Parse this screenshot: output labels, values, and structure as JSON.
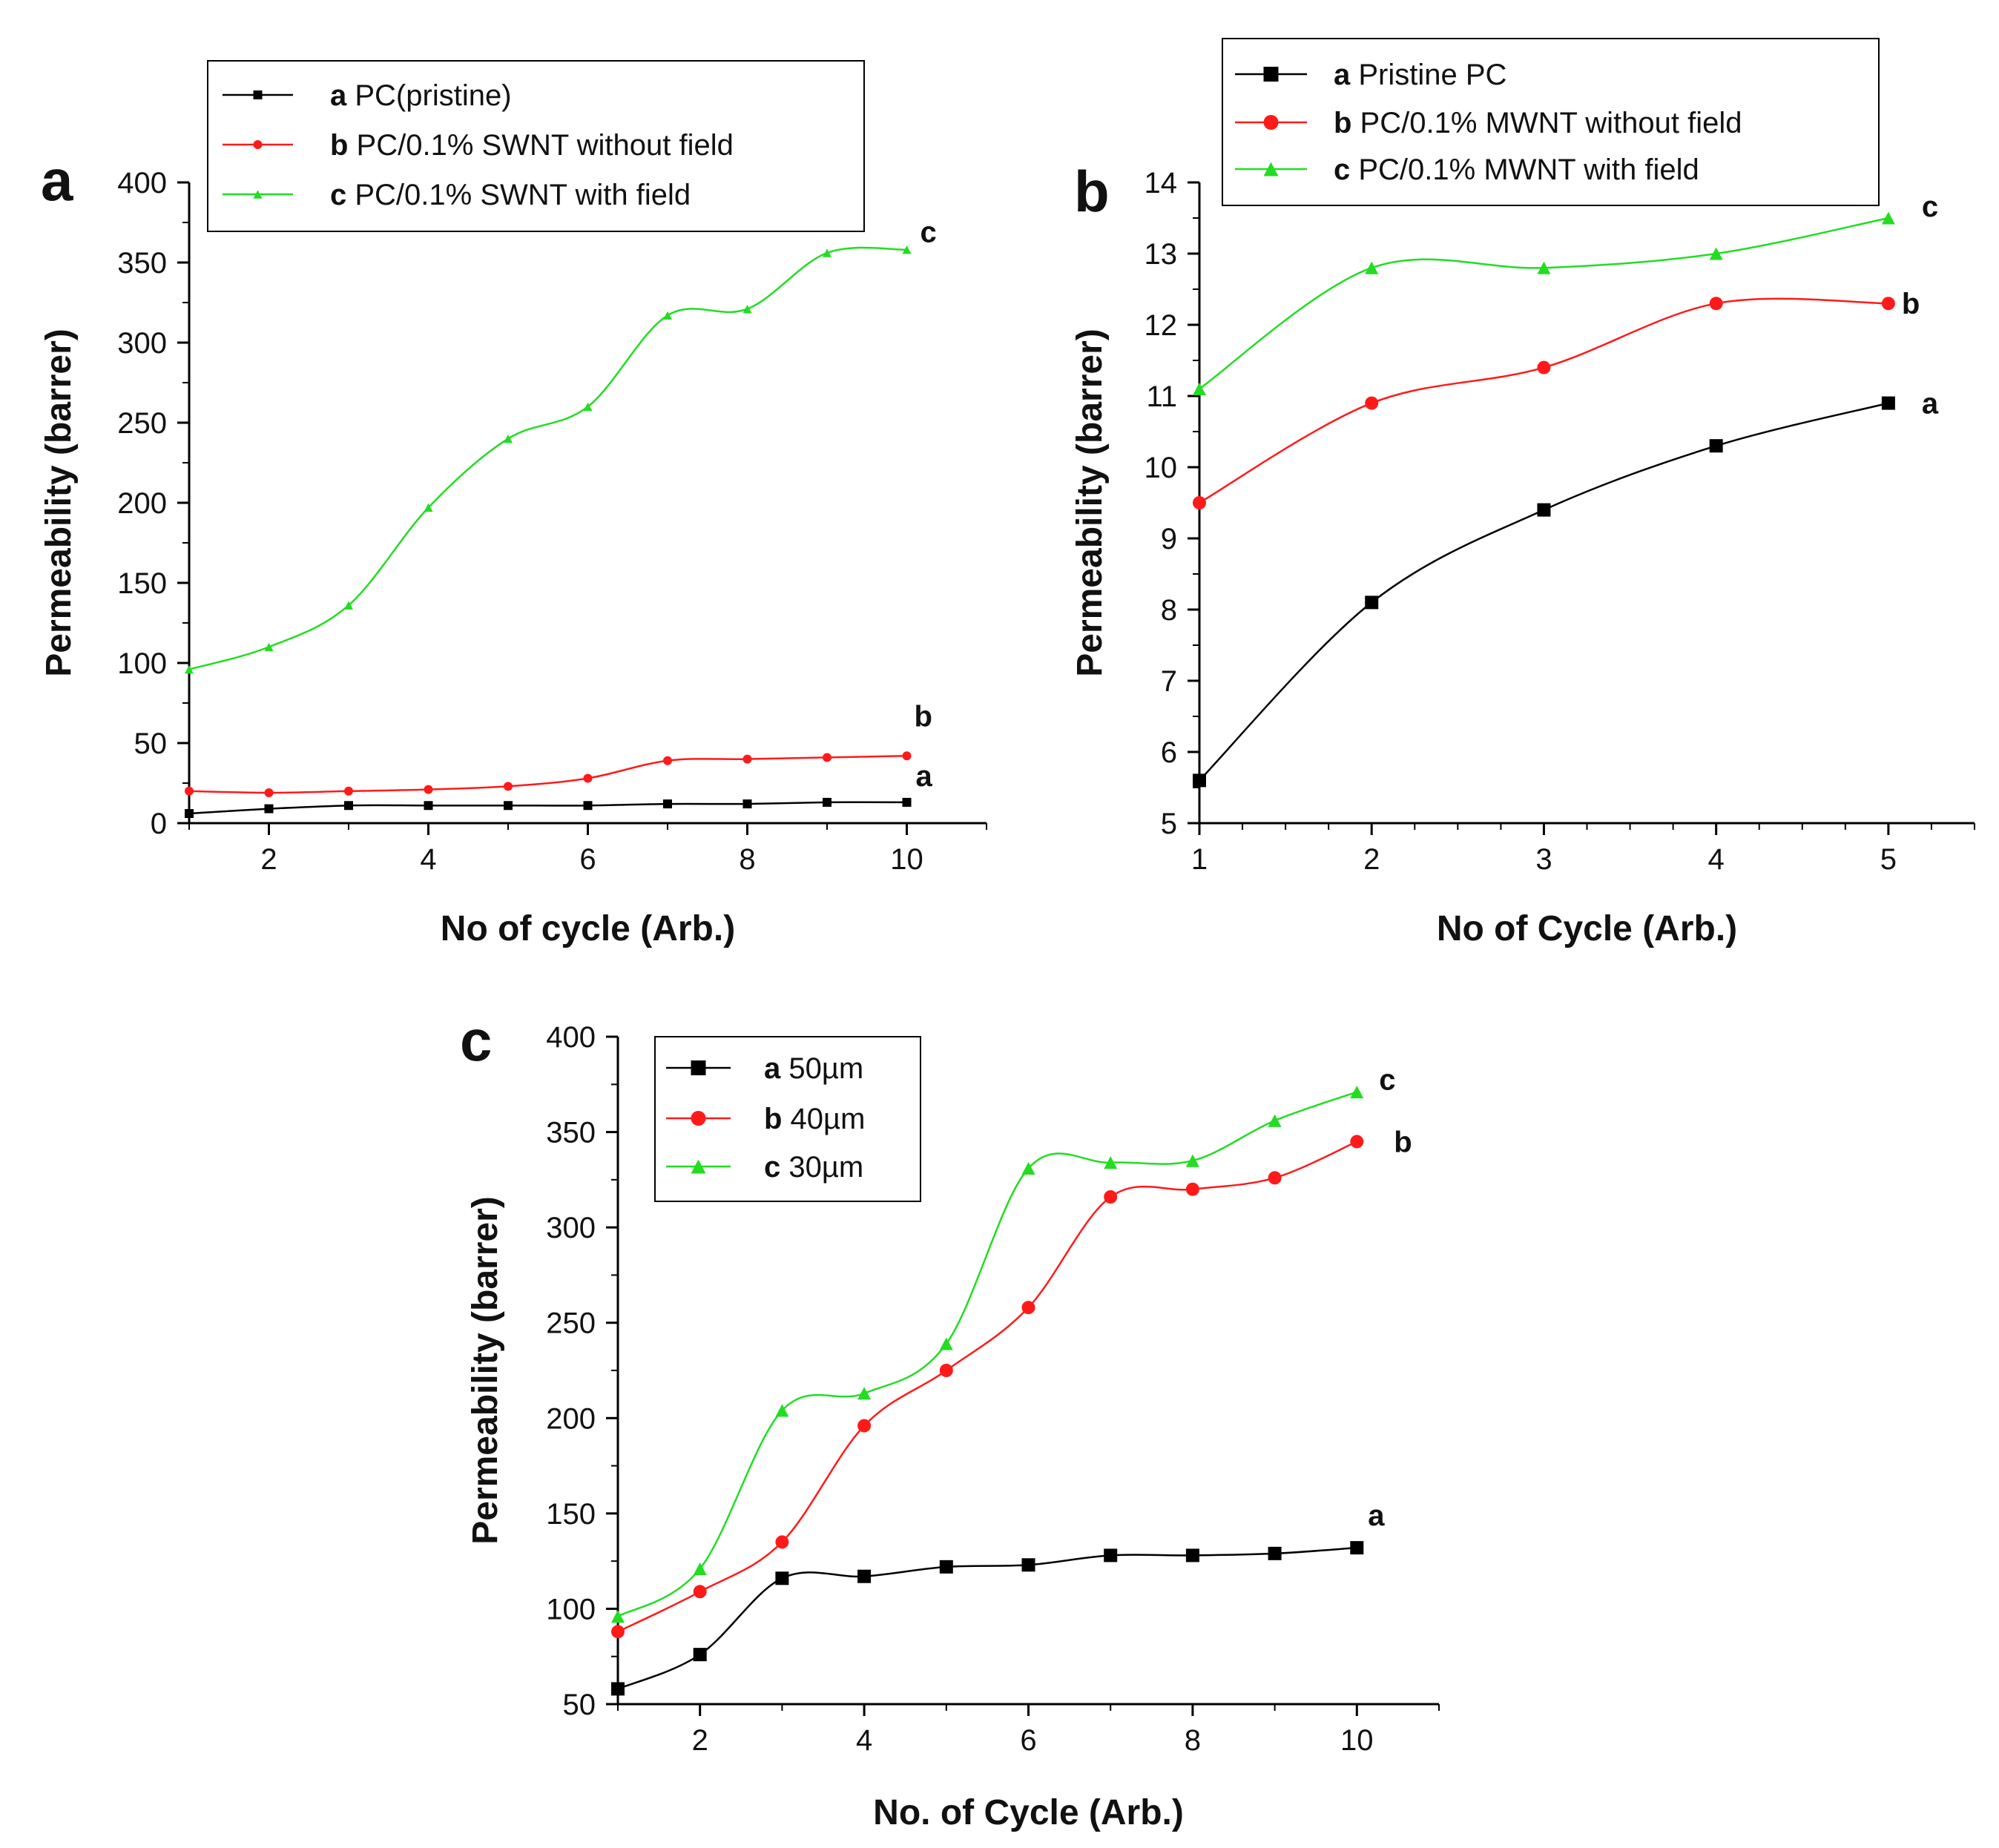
{
  "chart_data": [
    {
      "type": "line",
      "panel": "a",
      "xlabel": "No of cycle (Arb.)",
      "ylabel": "Permeability (barrer)",
      "xlim": [
        1,
        11
      ],
      "ylim": [
        0,
        400
      ],
      "xticks": [
        2,
        4,
        6,
        8,
        10
      ],
      "yticks": [
        0,
        50,
        100,
        150,
        200,
        250,
        300,
        350,
        400
      ],
      "legend_position": "top-left",
      "x": [
        1,
        2,
        3,
        4,
        5,
        6,
        7,
        8,
        9,
        10
      ],
      "series": [
        {
          "letter": "a",
          "name": "PC(pristine)",
          "color": "#000000",
          "marker": "square",
          "values": [
            6,
            9,
            11,
            11,
            11,
            11,
            12,
            12,
            13,
            13
          ]
        },
        {
          "letter": "b",
          "name": "PC/0.1% SWNT without field",
          "color": "#ff1a1a",
          "marker": "circle",
          "values": [
            20,
            19,
            20,
            21,
            23,
            28,
            39,
            40,
            41,
            42
          ]
        },
        {
          "letter": "c",
          "name": "PC/0.1% SWNT with field",
          "color": "#22dd22",
          "marker": "triangle",
          "values": [
            96,
            110,
            136,
            197,
            240,
            260,
            317,
            321,
            356,
            358
          ]
        }
      ]
    },
    {
      "type": "line",
      "panel": "b",
      "xlabel": "No of Cycle (Arb.)",
      "ylabel": "Permeability (barrer)",
      "xlim": [
        1,
        5.5
      ],
      "ylim": [
        5,
        14
      ],
      "xticks": [
        1,
        2,
        3,
        4,
        5
      ],
      "yticks": [
        5,
        6,
        7,
        8,
        9,
        10,
        11,
        12,
        13,
        14
      ],
      "legend_position": "top-right",
      "x": [
        1,
        2,
        3,
        4,
        5
      ],
      "series": [
        {
          "letter": "a",
          "name": "Pristine PC",
          "color": "#000000",
          "marker": "square",
          "values": [
            5.6,
            8.1,
            9.4,
            10.3,
            10.9
          ]
        },
        {
          "letter": "b",
          "name": "PC/0.1% MWNT without field",
          "color": "#ff1a1a",
          "marker": "circle",
          "values": [
            9.5,
            10.9,
            11.4,
            12.3,
            12.3
          ]
        },
        {
          "letter": "c",
          "name": "PC/0.1% MWNT with field",
          "color": "#22dd22",
          "marker": "triangle",
          "values": [
            11.1,
            12.8,
            12.8,
            13.0,
            13.5
          ]
        }
      ]
    },
    {
      "type": "line",
      "panel": "c",
      "xlabel": "No. of Cycle (Arb.)",
      "ylabel": "Permeability (barrer)",
      "xlim": [
        1,
        11
      ],
      "ylim": [
        50,
        400
      ],
      "xticks": [
        2,
        4,
        6,
        8,
        10
      ],
      "yticks": [
        50,
        100,
        150,
        200,
        250,
        300,
        350,
        400
      ],
      "legend_position": "top-left",
      "x": [
        1,
        2,
        3,
        4,
        5,
        6,
        7,
        8,
        9,
        10
      ],
      "series": [
        {
          "letter": "a",
          "name": "50µm",
          "color": "#000000",
          "marker": "square",
          "values": [
            58,
            76,
            116,
            117,
            122,
            123,
            128,
            128,
            129,
            132
          ]
        },
        {
          "letter": "b",
          "name": "40µm",
          "color": "#ff1a1a",
          "marker": "circle",
          "values": [
            88,
            109,
            135,
            196,
            225,
            258,
            316,
            320,
            326,
            345
          ]
        },
        {
          "letter": "c",
          "name": "30µm",
          "color": "#22dd22",
          "marker": "triangle",
          "values": [
            96,
            121,
            204,
            213,
            239,
            331,
            334,
            335,
            356,
            371
          ]
        }
      ]
    }
  ]
}
